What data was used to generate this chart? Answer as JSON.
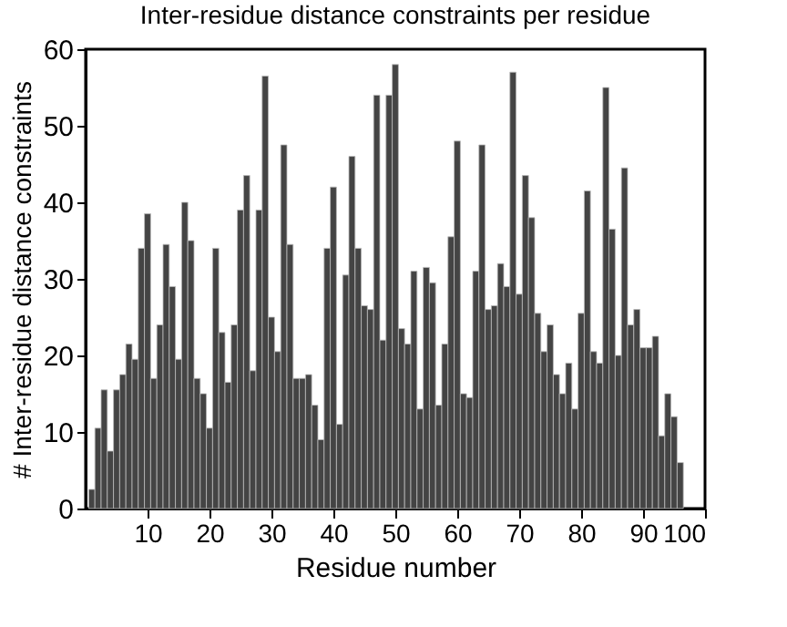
{
  "chart_data": {
    "type": "bar",
    "title": "Inter-residue distance constraints per residue",
    "xlabel": "Residue number",
    "ylabel": "# Inter-residue distance constraints",
    "x": [
      1,
      2,
      3,
      4,
      5,
      6,
      7,
      8,
      9,
      10,
      11,
      12,
      13,
      14,
      15,
      16,
      17,
      18,
      19,
      20,
      21,
      22,
      23,
      24,
      25,
      26,
      27,
      28,
      29,
      30,
      31,
      32,
      33,
      34,
      35,
      36,
      37,
      38,
      39,
      40,
      41,
      42,
      43,
      44,
      45,
      46,
      47,
      48,
      49,
      50,
      51,
      52,
      53,
      54,
      55,
      56,
      57,
      58,
      59,
      60,
      61,
      62,
      63,
      64,
      65,
      66,
      67,
      68,
      69,
      70,
      71,
      72,
      73,
      74,
      75,
      76,
      77,
      78,
      79,
      80,
      81,
      82,
      83,
      84,
      85,
      86,
      87,
      88,
      89,
      90,
      91,
      92,
      93,
      94,
      95,
      96
    ],
    "values": [
      2.5,
      10.5,
      15.5,
      7.5,
      15.5,
      17.5,
      21.5,
      19.5,
      34,
      38.5,
      17,
      24,
      34.5,
      29,
      19.5,
      40,
      35,
      17,
      15,
      10.5,
      34,
      23,
      16.5,
      24,
      39,
      43.5,
      18,
      39,
      56.5,
      25,
      20.5,
      47.5,
      34.5,
      17,
      17,
      17.5,
      13.5,
      9,
      34,
      42,
      11,
      30.5,
      46,
      34,
      26.5,
      26,
      54,
      22,
      54,
      58,
      23.5,
      21.5,
      31,
      13,
      31.5,
      29.5,
      13.5,
      21.5,
      35.5,
      48,
      15,
      14.5,
      31,
      47.5,
      26,
      26.5,
      32,
      29,
      57,
      28,
      43.5,
      38,
      25.5,
      20.5,
      24,
      17.5,
      15,
      19,
      13,
      25.5,
      41.5,
      20.5,
      19,
      55,
      36.5,
      20,
      44.5,
      24,
      26,
      21,
      21,
      22.5,
      9.5,
      15,
      12,
      6
    ],
    "color": "#444444",
    "xlim": [
      0,
      100
    ],
    "xticks": [
      10,
      20,
      30,
      40,
      50,
      60,
      70,
      80,
      90,
      100
    ],
    "ylim": [
      0,
      60
    ],
    "yticks": [
      0,
      10,
      20,
      30,
      40,
      50,
      60
    ],
    "grid": false
  }
}
